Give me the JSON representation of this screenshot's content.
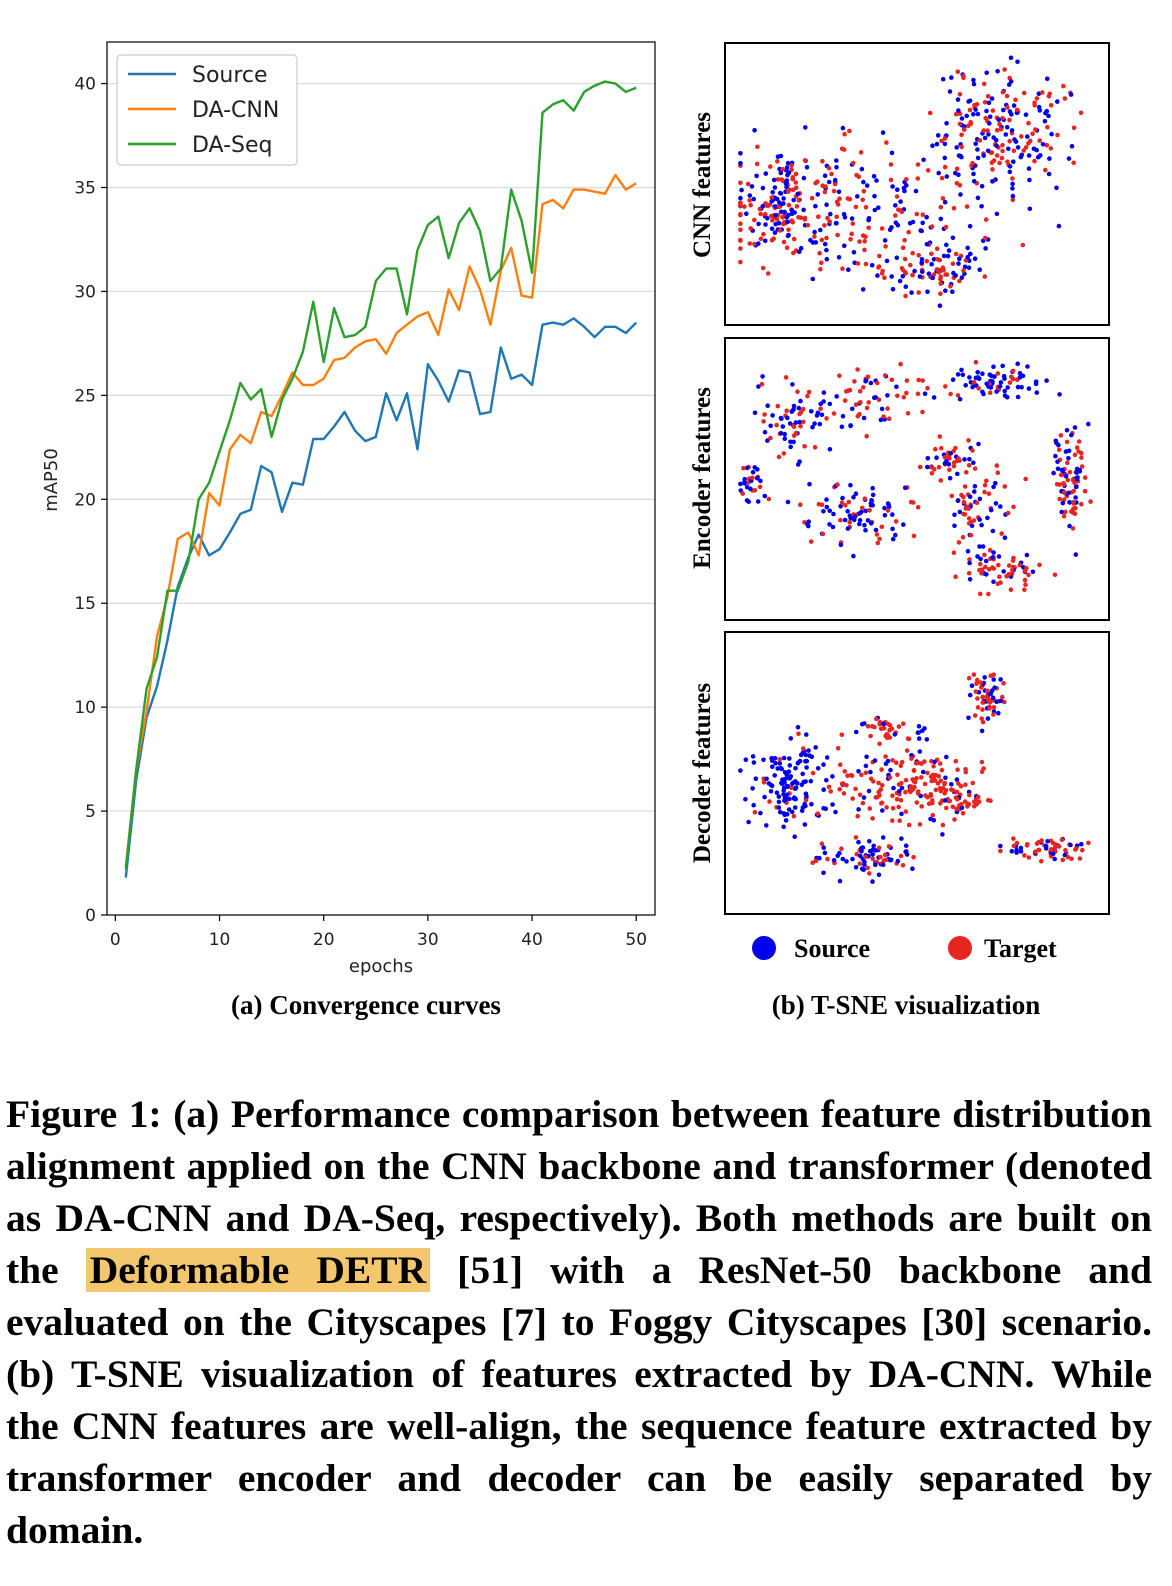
{
  "chart_data": [
    {
      "type": "line",
      "x": [
        1,
        2,
        3,
        4,
        5,
        6,
        7,
        8,
        9,
        10,
        11,
        12,
        13,
        14,
        15,
        16,
        17,
        18,
        19,
        20,
        21,
        22,
        23,
        24,
        25,
        26,
        27,
        28,
        29,
        30,
        31,
        32,
        33,
        34,
        35,
        36,
        37,
        38,
        39,
        40,
        41,
        42,
        43,
        44,
        45,
        46,
        47,
        48,
        49,
        50
      ],
      "series": [
        {
          "name": "Source",
          "color": "#1f77b4",
          "values": [
            1.8,
            6.5,
            9.5,
            11.0,
            13.2,
            15.8,
            17.2,
            18.3,
            17.3,
            17.6,
            18.4,
            19.3,
            19.5,
            21.6,
            21.3,
            19.4,
            20.8,
            20.7,
            22.9,
            22.9,
            23.5,
            24.2,
            23.3,
            22.8,
            23.0,
            25.1,
            23.8,
            25.1,
            22.4,
            26.5,
            25.7,
            24.7,
            26.2,
            26.1,
            24.1,
            24.2,
            27.3,
            25.8,
            26.0,
            25.5,
            28.4,
            28.5,
            28.4,
            28.7,
            28.3,
            27.8,
            28.3,
            28.3,
            28.0,
            28.5
          ]
        },
        {
          "name": "DA-CNN",
          "color": "#ff7f0e",
          "values": [
            2.3,
            7.0,
            9.8,
            13.4,
            15.3,
            18.1,
            18.4,
            17.3,
            20.3,
            19.7,
            22.4,
            23.1,
            22.7,
            24.2,
            24.0,
            25.0,
            26.1,
            25.5,
            25.5,
            25.8,
            26.7,
            26.8,
            27.3,
            27.6,
            27.7,
            27.0,
            28.0,
            28.4,
            28.8,
            29.0,
            27.9,
            30.1,
            29.1,
            31.2,
            30.1,
            28.4,
            31.0,
            32.1,
            29.8,
            29.7,
            34.2,
            34.4,
            34.0,
            34.9,
            34.9,
            34.8,
            34.7,
            35.6,
            34.9,
            35.2
          ]
        },
        {
          "name": "DA-Seq",
          "color": "#2ca02c",
          "values": [
            2.2,
            7.0,
            10.9,
            12.4,
            15.6,
            15.6,
            17.0,
            20.0,
            20.8,
            22.3,
            23.8,
            25.6,
            24.8,
            25.3,
            23.0,
            24.8,
            25.8,
            27.1,
            29.5,
            26.6,
            29.2,
            27.8,
            27.9,
            28.3,
            30.5,
            31.1,
            31.1,
            28.9,
            32.0,
            33.2,
            33.6,
            31.6,
            33.3,
            34.0,
            32.9,
            30.5,
            31.1,
            34.9,
            33.4,
            30.9,
            38.6,
            39.0,
            39.2,
            38.7,
            39.6,
            39.9,
            40.1,
            40.0,
            39.6,
            39.8
          ]
        }
      ],
      "xlabel": "epochs",
      "ylabel": "mAP50",
      "xlim": [
        -0.8,
        51.8
      ],
      "ylim": [
        0,
        42
      ],
      "xticks": [
        0,
        10,
        20,
        30,
        40,
        50
      ],
      "yticks": [
        0,
        5,
        10,
        15,
        20,
        25,
        30,
        35,
        40
      ],
      "grid": "horizontal",
      "legend": "top-left",
      "caption": "(a) Convergence curves"
    },
    {
      "type": "scatter",
      "caption": "(b) T-SNE visualization",
      "legend": "bottom",
      "series": [
        {
          "name": "Source",
          "color": "#0000ee"
        },
        {
          "name": "Target",
          "color": "#e8251f"
        }
      ],
      "panels": [
        {
          "label": "CNN features"
        },
        {
          "label": "Encoder features"
        },
        {
          "label": "Decoder features"
        }
      ]
    }
  ],
  "caption": {
    "before": "Figure 1: (a) Performance comparison between feature distribution alignment applied on the CNN backbone and transformer (denoted as DA-CNN and DA-Seq, respectively). Both methods are built on the ",
    "highlight": "Deformable DETR",
    "after": " [51] with a ResNet-50 backbone and evaluated on the Cityscapes [7] to Foggy Cityscapes [30] scenario. (b) T-SNE visualization of features extracted by DA-CNN. While the CNN features are well-align, the sequence feature extracted by transformer encoder and decoder can be easily separated by domain."
  }
}
